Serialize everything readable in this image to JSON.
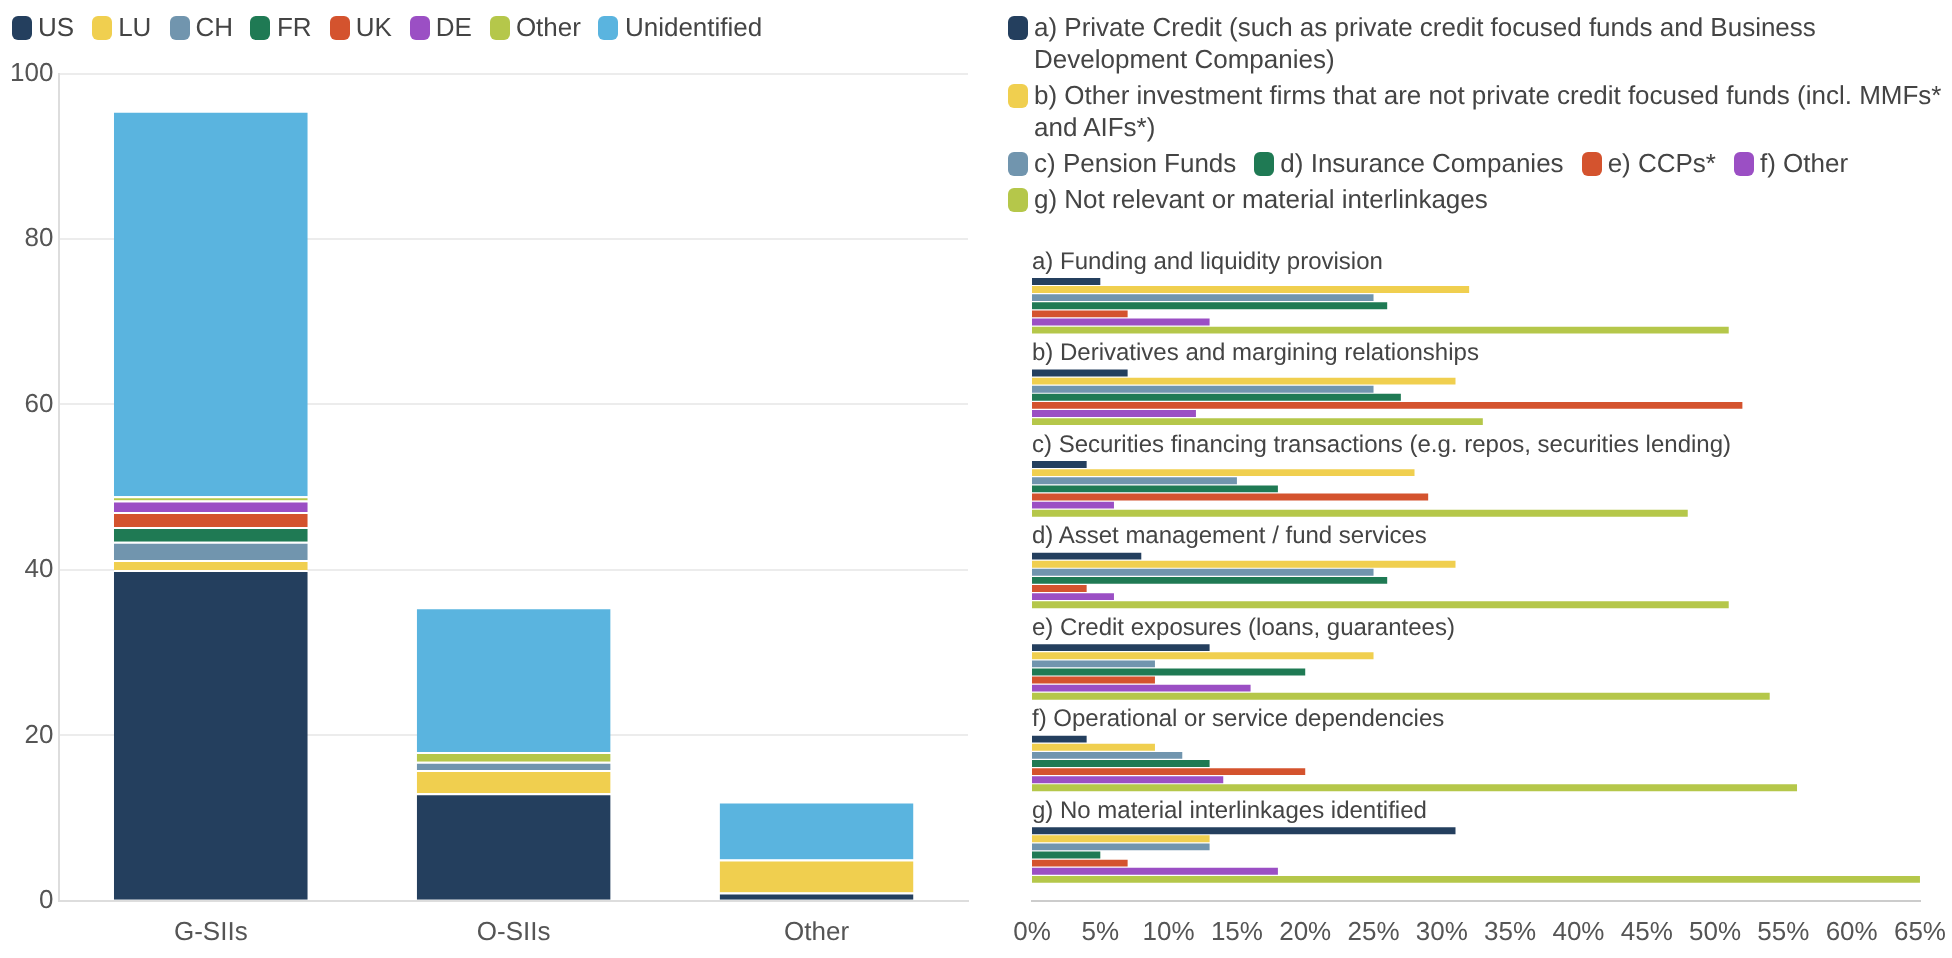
{
  "chart_data": [
    {
      "type": "bar",
      "stacked": true,
      "categories": [
        "G-SIIs",
        "O-SIIs",
        "Other"
      ],
      "series": [
        {
          "name": "US",
          "color": "#243f5e",
          "values": [
            40,
            13,
            1
          ]
        },
        {
          "name": "LU",
          "color": "#f0cf4f",
          "values": [
            1.2,
            2.8,
            4
          ]
        },
        {
          "name": "CH",
          "color": "#7195ae",
          "values": [
            2.2,
            1,
            0
          ]
        },
        {
          "name": "FR",
          "color": "#1f7a54",
          "values": [
            1.8,
            0,
            0
          ]
        },
        {
          "name": "UK",
          "color": "#d4532e",
          "values": [
            1.8,
            0,
            0
          ]
        },
        {
          "name": "DE",
          "color": "#9b4fc4",
          "values": [
            1.4,
            0,
            0
          ]
        },
        {
          "name": "Other",
          "color": "#b5c74a",
          "values": [
            0.5,
            1.2,
            0
          ]
        },
        {
          "name": "Unidentified",
          "color": "#5ab4df",
          "values": [
            46.6,
            17.5,
            7
          ]
        }
      ],
      "ylim": [
        0,
        100
      ],
      "yticks": [
        0,
        20,
        40,
        60,
        80,
        100
      ],
      "grid": "y",
      "legend": "top left"
    },
    {
      "type": "bar",
      "orientation": "horizontal",
      "categories": [
        "a) Funding and liquidity provision",
        "b) Derivatives and margining relationships",
        "c) Securities financing transactions (e.g. repos, securities lending)",
        "d) Asset management / fund services",
        "e) Credit exposures (loans, guarantees)",
        "f) Operational or service dependencies",
        "g) No material interlinkages identified"
      ],
      "series": [
        {
          "name": "a) Private Credit (such as private credit focused funds and Business Development Companies)",
          "color": "#243f5e",
          "values": [
            5,
            7,
            4,
            8,
            13,
            4,
            31
          ]
        },
        {
          "name": "b) Other investment firms that are not private credit focused funds (incl. MMFs* and AIFs*)",
          "color": "#f0cf4f",
          "values": [
            32,
            31,
            28,
            31,
            25,
            9,
            13
          ]
        },
        {
          "name": "c) Pension Funds",
          "color": "#7195ae",
          "values": [
            25,
            25,
            15,
            25,
            9,
            11,
            13
          ]
        },
        {
          "name": "d) Insurance Companies",
          "color": "#1f7a54",
          "values": [
            26,
            27,
            18,
            26,
            20,
            13,
            5
          ]
        },
        {
          "name": "e) CCPs*",
          "color": "#d4532e",
          "values": [
            7,
            52,
            29,
            4,
            9,
            20,
            7
          ]
        },
        {
          "name": "f) Other",
          "color": "#9b4fc4",
          "values": [
            13,
            12,
            6,
            6,
            16,
            14,
            18
          ]
        },
        {
          "name": "g) Not relevant or material interlinkages",
          "color": "#b5c74a",
          "values": [
            51,
            33,
            48,
            51,
            54,
            56,
            65
          ]
        }
      ],
      "xlim": [
        0,
        65
      ],
      "xticks": [
        {
          "value": 0,
          "label": "0%"
        },
        {
          "value": 5,
          "label": "5%"
        },
        {
          "value": 10,
          "label": "10%"
        },
        {
          "value": 15,
          "label": "15%"
        },
        {
          "value": 20,
          "label": "20%"
        },
        {
          "value": 25,
          "label": "25%"
        },
        {
          "value": 30,
          "label": "30%"
        },
        {
          "value": 35,
          "label": "35%"
        },
        {
          "value": 40,
          "label": "40%"
        },
        {
          "value": 45,
          "label": "45%"
        },
        {
          "value": 50,
          "label": "50%"
        },
        {
          "value": 55,
          "label": "55%"
        },
        {
          "value": 60,
          "label": "60%"
        },
        {
          "value": 65,
          "label": "65%"
        }
      ],
      "grid": false,
      "legend": "top left"
    }
  ]
}
